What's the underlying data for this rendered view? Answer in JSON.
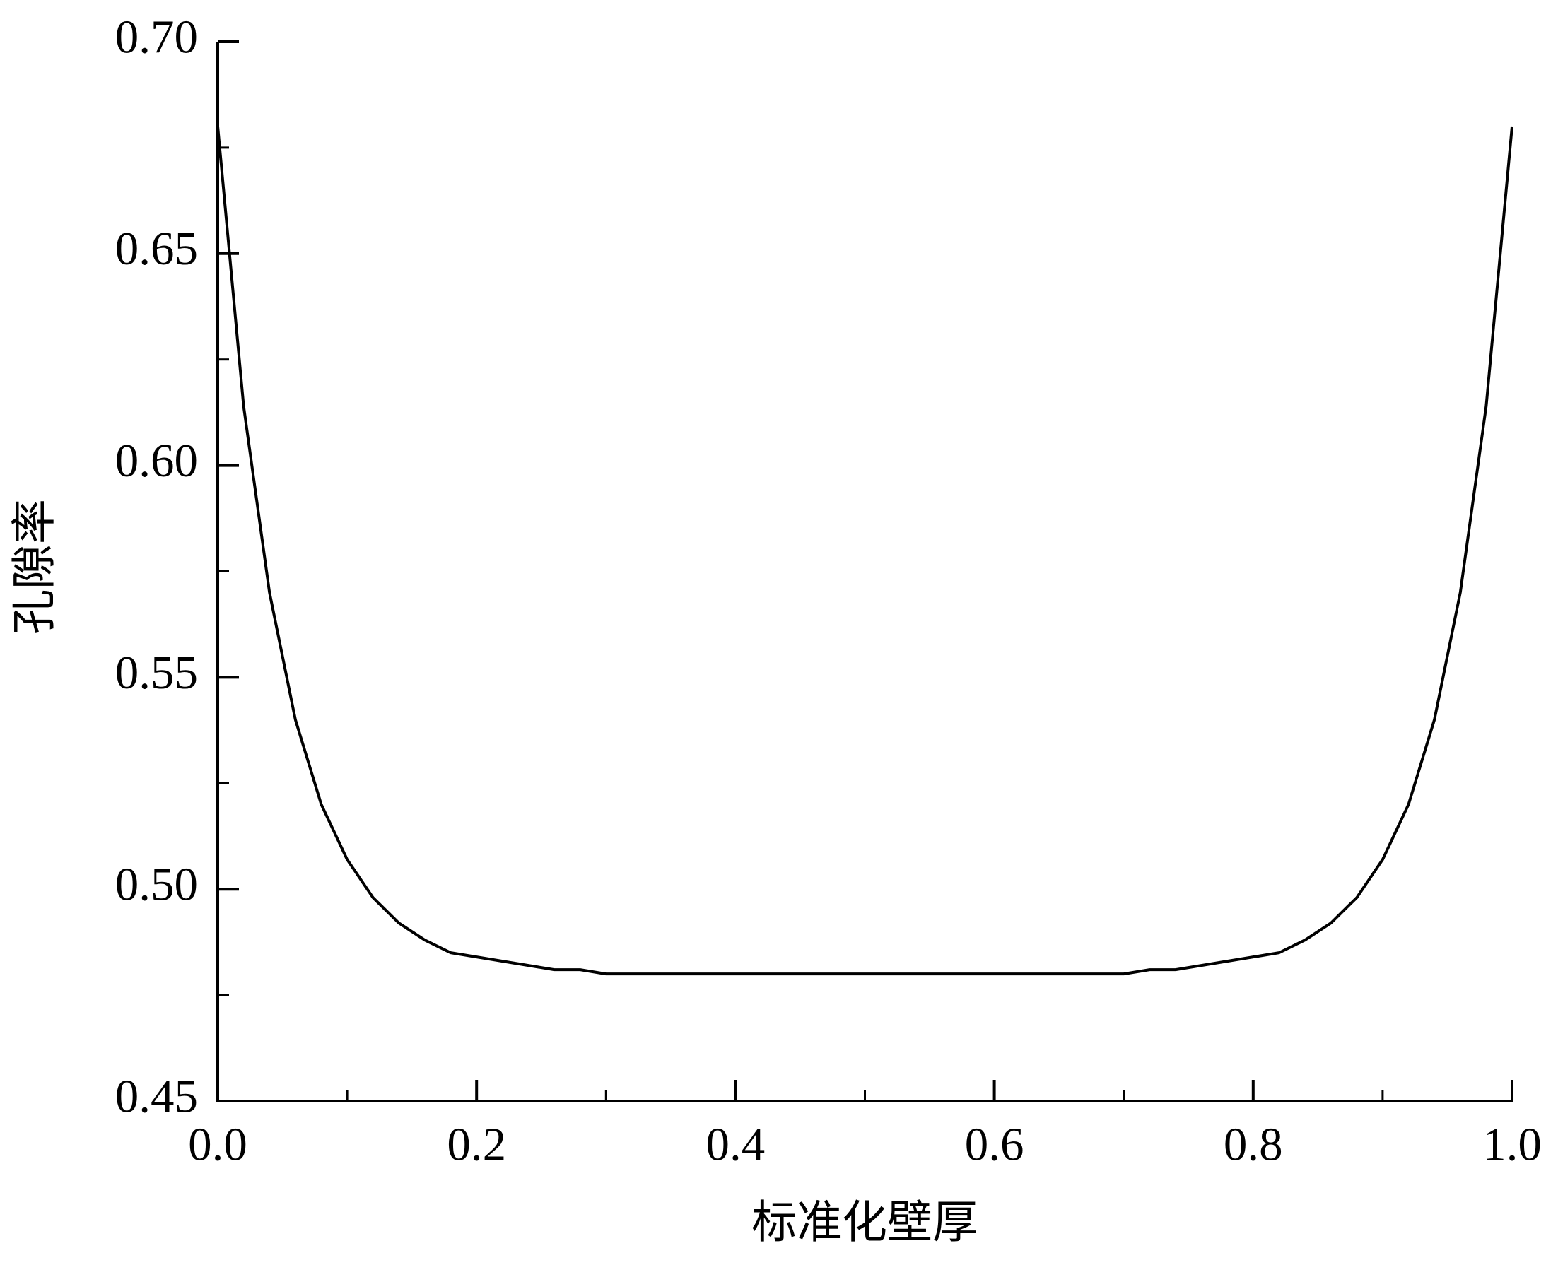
{
  "chart_data": {
    "type": "line",
    "x_label": "标准化壁厚",
    "y_label": "孔隙率",
    "xlim": [
      0,
      1
    ],
    "ylim": [
      0.45,
      0.7
    ],
    "xticks": [
      {
        "value": 0,
        "label": "0.0"
      },
      {
        "value": 0.2,
        "label": "0.2"
      },
      {
        "value": 0.4,
        "label": "0.4"
      },
      {
        "value": 0.6,
        "label": "0.6"
      },
      {
        "value": 0.8,
        "label": "0.8"
      },
      {
        "value": 1,
        "label": "1.0"
      }
    ],
    "yticks": [
      {
        "value": 0.45,
        "label": "0.45"
      },
      {
        "value": 0.5,
        "label": "0.50"
      },
      {
        "value": 0.55,
        "label": "0.55"
      },
      {
        "value": 0.6,
        "label": "0.60"
      },
      {
        "value": 0.65,
        "label": "0.65"
      },
      {
        "value": 0.7,
        "label": "0.70"
      }
    ],
    "xminor_ticks": [
      0.1,
      0.3,
      0.5,
      0.7,
      0.9
    ],
    "yminor_ticks": [
      0.475,
      0.525,
      0.575,
      0.625,
      0.675
    ],
    "grid": false,
    "x": [
      0,
      0.02,
      0.04,
      0.06,
      0.08,
      0.1,
      0.12,
      0.14,
      0.16,
      0.18,
      0.2,
      0.22,
      0.24,
      0.26,
      0.28,
      0.3,
      0.32,
      0.34,
      0.36,
      0.38,
      0.4,
      0.42,
      0.44,
      0.46,
      0.48,
      0.5,
      0.52,
      0.54,
      0.56,
      0.58,
      0.6,
      0.62,
      0.64,
      0.66,
      0.68,
      0.7,
      0.72,
      0.74,
      0.76,
      0.78,
      0.8,
      0.82,
      0.84,
      0.86,
      0.88,
      0.9,
      0.92,
      0.94,
      0.96,
      0.98,
      1
    ],
    "series": [
      {
        "color": "#000000",
        "values": [
          0.68,
          0.614,
          0.57,
          0.54,
          0.52,
          0.507,
          0.498,
          0.492,
          0.488,
          0.485,
          0.484,
          0.483,
          0.482,
          0.481,
          0.481,
          0.48,
          0.48,
          0.48,
          0.48,
          0.48,
          0.48,
          0.48,
          0.48,
          0.48,
          0.48,
          0.48,
          0.48,
          0.48,
          0.48,
          0.48,
          0.48,
          0.48,
          0.48,
          0.48,
          0.48,
          0.48,
          0.481,
          0.481,
          0.482,
          0.483,
          0.484,
          0.485,
          0.488,
          0.492,
          0.498,
          0.507,
          0.52,
          0.54,
          0.57,
          0.614,
          0.68
        ]
      }
    ]
  }
}
